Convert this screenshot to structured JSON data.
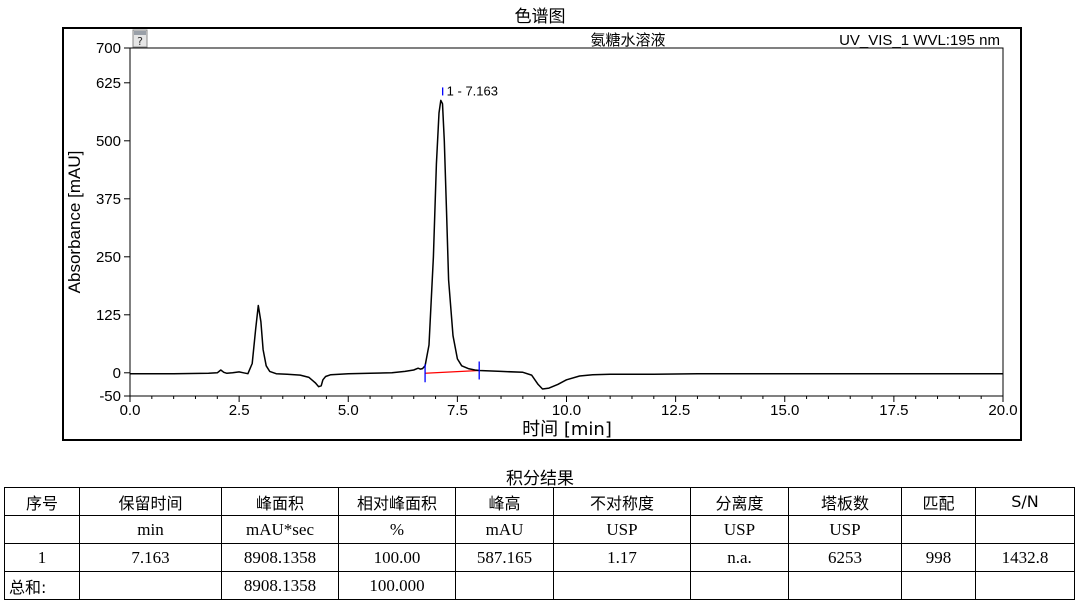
{
  "page_title": "色谱图",
  "table_title": "积分结果",
  "chart_data": {
    "type": "line",
    "title": "氨糖水溶液",
    "channel_label": "UV_VIS_1 WVL:195 nm",
    "xlabel": "时间 [min]",
    "ylabel": "Absorbance [mAU]",
    "xlim": [
      0.0,
      20.0
    ],
    "ylim": [
      -50,
      700
    ],
    "x_ticks": [
      "0.0",
      "2.5",
      "5.0",
      "7.5",
      "10.0",
      "12.5",
      "15.0",
      "17.5",
      "20.0"
    ],
    "y_ticks": [
      "700",
      "625",
      "500",
      "375",
      "250",
      "125",
      "0",
      "-50"
    ],
    "series": [
      {
        "color": "#000000",
        "x": [
          0.0,
          1.0,
          1.8,
          2.0,
          2.08,
          2.15,
          2.22,
          2.35,
          2.5,
          2.6,
          2.7,
          2.8,
          2.88,
          2.94,
          3.0,
          3.05,
          3.12,
          3.2,
          3.35,
          3.6,
          3.9,
          4.1,
          4.25,
          4.32,
          4.38,
          4.42,
          4.48,
          4.6,
          5.0,
          5.5,
          6.0,
          6.3,
          6.5,
          6.6,
          6.65,
          6.7,
          6.76,
          6.85,
          6.95,
          7.02,
          7.08,
          7.12,
          7.16,
          7.2,
          7.25,
          7.3,
          7.4,
          7.5,
          7.6,
          7.75,
          7.9,
          8.0,
          8.5,
          9.0,
          9.2,
          9.35,
          9.45,
          9.6,
          9.8,
          10.0,
          10.3,
          10.6,
          11.0,
          12.0,
          13.0,
          14.0,
          15.0,
          16.0,
          17.0,
          18.0,
          19.0,
          20.0
        ],
        "y": [
          -2,
          -2,
          -1,
          0,
          6,
          1,
          -1,
          0,
          2,
          0,
          -2,
          20,
          95,
          145,
          110,
          50,
          15,
          3,
          -2,
          -3,
          -5,
          -10,
          -22,
          -30,
          -28,
          -15,
          -8,
          -4,
          -2,
          -1,
          0,
          3,
          6,
          10,
          8,
          9,
          15,
          60,
          250,
          450,
          560,
          587,
          580,
          500,
          350,
          200,
          80,
          30,
          15,
          9,
          6,
          5,
          3,
          1,
          -5,
          -25,
          -35,
          -33,
          -25,
          -15,
          -7,
          -4,
          -3,
          -3,
          -2,
          -2,
          -2,
          -2,
          -2,
          -2,
          -2,
          -2
        ]
      }
    ],
    "peak_label": "1 - 7.163",
    "baseline": {
      "x": [
        6.76,
        8.0
      ],
      "y": [
        -1,
        5
      ],
      "color": "#ff0000"
    },
    "integration_markers": {
      "x": [
        6.76,
        8.0
      ],
      "color": "#0000ff"
    },
    "grid": false,
    "legend": "none"
  },
  "table": {
    "header": [
      "序号",
      "保留时间",
      "峰面积",
      "相对峰面积",
      "峰高",
      "不对称度",
      "分离度",
      "塔板数",
      "匹配",
      "S/N"
    ],
    "units": [
      "",
      "min",
      "mAU*sec",
      "%",
      "mAU",
      "USP",
      "USP",
      "USP",
      "",
      ""
    ],
    "rows": [
      [
        "1",
        "7.163",
        "8908.1358",
        "100.00",
        "587.165",
        "1.17",
        "n.a.",
        "6253",
        "998",
        "1432.8"
      ]
    ],
    "total": [
      "总和:",
      "",
      "8908.1358",
      "100.000",
      "",
      "",
      "",
      "",
      "",
      ""
    ]
  }
}
